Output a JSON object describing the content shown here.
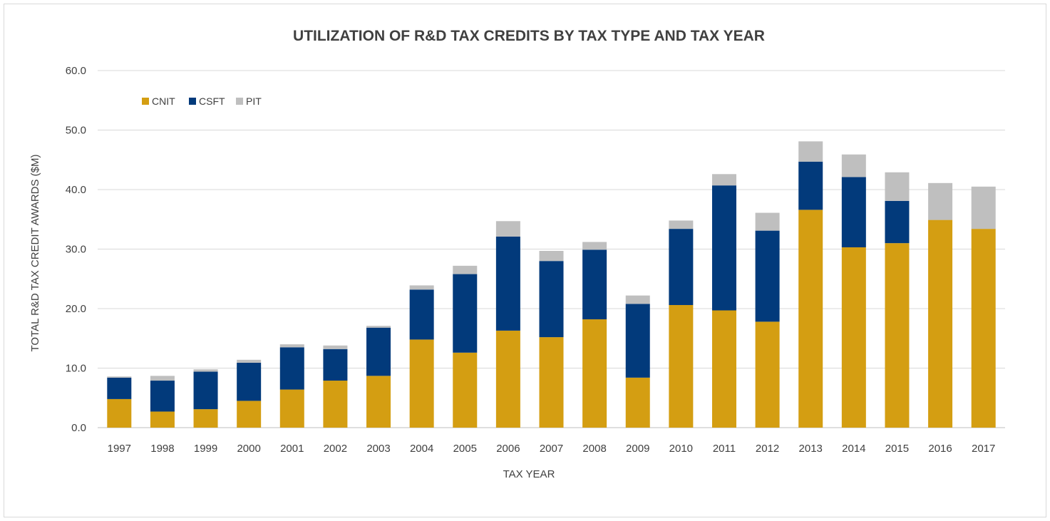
{
  "chart_data": {
    "type": "bar",
    "stacked": true,
    "title": "UTILIZATION OF R&D TAX CREDITS BY TAX TYPE AND TAX YEAR",
    "xlabel": "TAX YEAR",
    "ylabel": "TOTAL R&D TAX CREDIT AWARDS ($M)",
    "ylim": [
      0,
      60
    ],
    "yticks": [
      "0.0",
      "10.0",
      "20.0",
      "30.0",
      "40.0",
      "50.0",
      "60.0"
    ],
    "grid": true,
    "legend_position": "top-left",
    "categories": [
      "1997",
      "1998",
      "1999",
      "2000",
      "2001",
      "2002",
      "2003",
      "2004",
      "2005",
      "2006",
      "2007",
      "2008",
      "2009",
      "2010",
      "2011",
      "2012",
      "2013",
      "2014",
      "2015",
      "2016",
      "2017"
    ],
    "series": [
      {
        "name": "CNIT",
        "color": "#D49E12",
        "values": [
          4.8,
          2.7,
          3.1,
          4.5,
          6.4,
          7.9,
          8.7,
          14.8,
          12.6,
          16.3,
          15.2,
          18.2,
          8.4,
          20.6,
          19.7,
          17.8,
          36.6,
          30.3,
          31.0,
          34.9,
          33.4
        ]
      },
      {
        "name": "CSFT",
        "color": "#023A7B",
        "values": [
          3.6,
          5.2,
          6.3,
          6.4,
          7.1,
          5.3,
          8.1,
          8.4,
          13.2,
          15.8,
          12.8,
          11.7,
          12.4,
          12.8,
          21.0,
          15.3,
          8.1,
          11.8,
          7.1,
          0.0,
          0.0
        ]
      },
      {
        "name": "PIT",
        "color": "#BFBFBF",
        "values": [
          0.2,
          0.8,
          0.4,
          0.5,
          0.5,
          0.6,
          0.3,
          0.7,
          1.4,
          2.6,
          1.7,
          1.3,
          1.4,
          1.4,
          1.9,
          3.0,
          3.4,
          3.8,
          4.8,
          6.2,
          7.1
        ]
      }
    ]
  }
}
